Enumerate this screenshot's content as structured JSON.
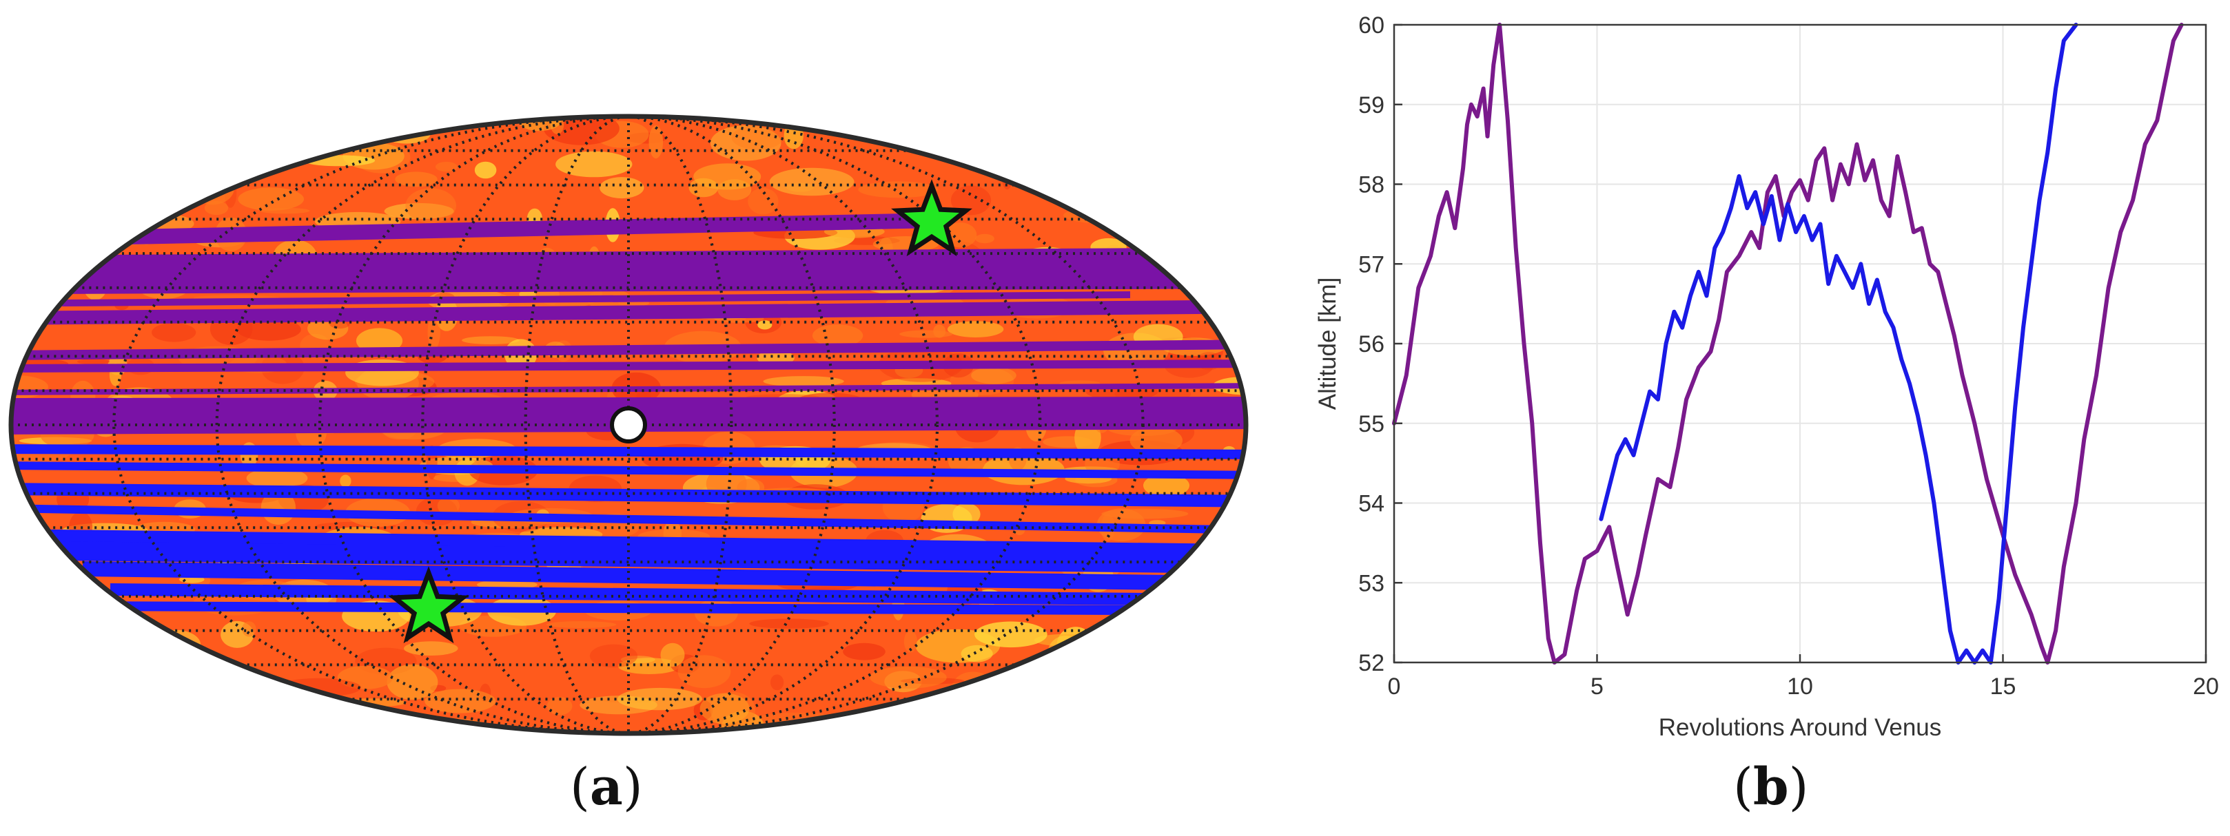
{
  "figure": {
    "label_a": "a",
    "label_b": "b"
  },
  "map": {
    "projection": "Mollweide",
    "background_palette": [
      "#ff5a1c",
      "#ff7a1e",
      "#ffb027",
      "#ffd83a",
      "#f23a12"
    ],
    "path_colors": {
      "first": "#7a12a6",
      "second": "#1a1aff"
    },
    "marker_colors": {
      "star": "#22e822",
      "center": "#ffffff"
    }
  },
  "chart_data": {
    "type": "line",
    "title": "",
    "xlabel": "Revolutions Around Venus",
    "ylabel": "Altitude [km]",
    "xlim": [
      0,
      20
    ],
    "ylim": [
      52,
      60
    ],
    "xticks": [
      0,
      5,
      10,
      15,
      20
    ],
    "yticks": [
      52,
      53,
      54,
      55,
      56,
      57,
      58,
      59,
      60
    ],
    "grid": true,
    "series": [
      {
        "name": "purple",
        "color": "#7a1a8c",
        "points": [
          [
            0,
            55
          ],
          [
            0.3,
            55.6
          ],
          [
            0.6,
            56.7
          ],
          [
            0.9,
            57.1
          ],
          [
            1.1,
            57.6
          ],
          [
            1.3,
            57.9
          ],
          [
            1.5,
            57.45
          ],
          [
            1.7,
            58.2
          ],
          [
            1.8,
            58.75
          ],
          [
            1.9,
            59
          ],
          [
            2.05,
            58.85
          ],
          [
            2.2,
            59.2
          ],
          [
            2.3,
            58.6
          ],
          [
            2.45,
            59.5
          ],
          [
            2.6,
            60
          ],
          [
            2.8,
            58.8
          ],
          [
            3.0,
            57.2
          ],
          [
            3.2,
            56
          ],
          [
            3.4,
            55
          ],
          [
            3.6,
            53.5
          ],
          [
            3.8,
            52.3
          ],
          [
            3.95,
            52
          ],
          [
            4.2,
            52.1
          ],
          [
            4.5,
            52.9
          ],
          [
            4.7,
            53.3
          ],
          [
            5.0,
            53.4
          ],
          [
            5.3,
            53.7
          ],
          [
            5.5,
            53.2
          ],
          [
            5.75,
            52.6
          ],
          [
            6.0,
            53.1
          ],
          [
            6.2,
            53.6
          ],
          [
            6.5,
            54.3
          ],
          [
            6.8,
            54.2
          ],
          [
            7.0,
            54.7
          ],
          [
            7.2,
            55.3
          ],
          [
            7.5,
            55.7
          ],
          [
            7.8,
            55.9
          ],
          [
            8.0,
            56.3
          ],
          [
            8.2,
            56.9
          ],
          [
            8.5,
            57.1
          ],
          [
            8.8,
            57.4
          ],
          [
            9.0,
            57.2
          ],
          [
            9.2,
            57.9
          ],
          [
            9.4,
            58.1
          ],
          [
            9.6,
            57.6
          ],
          [
            9.8,
            57.9
          ],
          [
            10.0,
            58.05
          ],
          [
            10.2,
            57.8
          ],
          [
            10.4,
            58.3
          ],
          [
            10.6,
            58.45
          ],
          [
            10.8,
            57.8
          ],
          [
            11.0,
            58.25
          ],
          [
            11.2,
            58.0
          ],
          [
            11.4,
            58.5
          ],
          [
            11.6,
            58.05
          ],
          [
            11.8,
            58.3
          ],
          [
            12.0,
            57.8
          ],
          [
            12.2,
            57.6
          ],
          [
            12.4,
            58.35
          ],
          [
            12.6,
            57.9
          ],
          [
            12.8,
            57.4
          ],
          [
            13.0,
            57.45
          ],
          [
            13.2,
            57.0
          ],
          [
            13.4,
            56.9
          ],
          [
            13.6,
            56.5
          ],
          [
            13.8,
            56.1
          ],
          [
            14.0,
            55.6
          ],
          [
            14.3,
            55.0
          ],
          [
            14.6,
            54.3
          ],
          [
            15.0,
            53.6
          ],
          [
            15.3,
            53.1
          ],
          [
            15.7,
            52.6
          ],
          [
            15.95,
            52.2
          ],
          [
            16.1,
            52.0
          ],
          [
            16.3,
            52.4
          ],
          [
            16.5,
            53.2
          ],
          [
            16.8,
            54.0
          ],
          [
            17.0,
            54.8
          ],
          [
            17.3,
            55.6
          ],
          [
            17.6,
            56.7
          ],
          [
            17.9,
            57.4
          ],
          [
            18.2,
            57.8
          ],
          [
            18.5,
            58.5
          ],
          [
            18.8,
            58.8
          ],
          [
            19.0,
            59.3
          ],
          [
            19.2,
            59.8
          ],
          [
            19.4,
            60.0
          ]
        ]
      },
      {
        "name": "blue",
        "color": "#1a1ae6",
        "points": [
          [
            5.1,
            53.8
          ],
          [
            5.3,
            54.2
          ],
          [
            5.5,
            54.6
          ],
          [
            5.7,
            54.8
          ],
          [
            5.9,
            54.6
          ],
          [
            6.1,
            55.0
          ],
          [
            6.3,
            55.4
          ],
          [
            6.5,
            55.3
          ],
          [
            6.7,
            56.0
          ],
          [
            6.9,
            56.4
          ],
          [
            7.1,
            56.2
          ],
          [
            7.3,
            56.6
          ],
          [
            7.5,
            56.9
          ],
          [
            7.7,
            56.6
          ],
          [
            7.9,
            57.2
          ],
          [
            8.1,
            57.4
          ],
          [
            8.3,
            57.7
          ],
          [
            8.5,
            58.1
          ],
          [
            8.7,
            57.7
          ],
          [
            8.9,
            57.9
          ],
          [
            9.1,
            57.5
          ],
          [
            9.3,
            57.85
          ],
          [
            9.5,
            57.3
          ],
          [
            9.7,
            57.75
          ],
          [
            9.9,
            57.4
          ],
          [
            10.1,
            57.6
          ],
          [
            10.3,
            57.3
          ],
          [
            10.5,
            57.5
          ],
          [
            10.7,
            56.75
          ],
          [
            10.9,
            57.1
          ],
          [
            11.1,
            56.9
          ],
          [
            11.3,
            56.7
          ],
          [
            11.5,
            57.0
          ],
          [
            11.7,
            56.5
          ],
          [
            11.9,
            56.8
          ],
          [
            12.1,
            56.4
          ],
          [
            12.3,
            56.2
          ],
          [
            12.5,
            55.8
          ],
          [
            12.7,
            55.5
          ],
          [
            12.9,
            55.1
          ],
          [
            13.1,
            54.6
          ],
          [
            13.3,
            54.0
          ],
          [
            13.5,
            53.2
          ],
          [
            13.7,
            52.4
          ],
          [
            13.9,
            52.0
          ],
          [
            14.1,
            52.15
          ],
          [
            14.3,
            52.0
          ],
          [
            14.5,
            52.15
          ],
          [
            14.7,
            52.0
          ],
          [
            14.9,
            52.8
          ],
          [
            15.1,
            54.0
          ],
          [
            15.3,
            55.2
          ],
          [
            15.5,
            56.2
          ],
          [
            15.7,
            57.0
          ],
          [
            15.9,
            57.8
          ],
          [
            16.1,
            58.4
          ],
          [
            16.3,
            59.2
          ],
          [
            16.5,
            59.8
          ],
          [
            16.8,
            60.0
          ]
        ]
      }
    ]
  }
}
